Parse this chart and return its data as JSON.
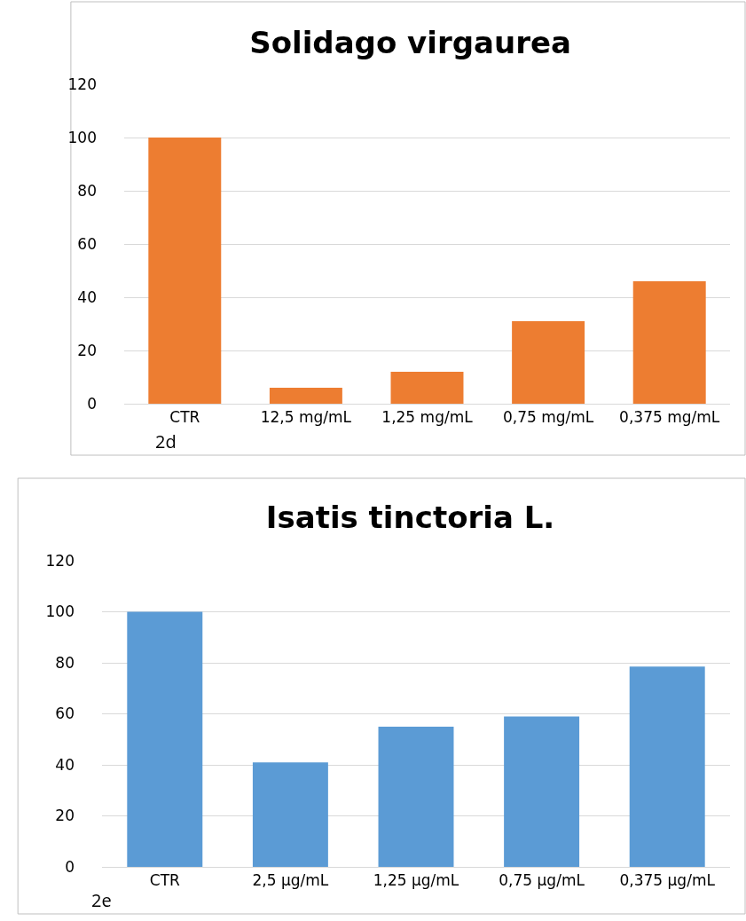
{
  "chart_data": [
    {
      "type": "bar",
      "title": "Solidago virgaurea",
      "categories": [
        "CTR",
        "12,5 mg/mL",
        "1,25 mg/mL",
        "0,75 mg/mL",
        "0,375 mg/mL"
      ],
      "values": [
        100,
        6,
        12,
        31,
        46
      ],
      "color": "#ed7d31",
      "ylim": [
        0,
        120
      ],
      "yticks": [
        0,
        20,
        40,
        60,
        80,
        100,
        120
      ],
      "grid": "y",
      "legend": false,
      "annotations": [
        "2d"
      ]
    },
    {
      "type": "bar",
      "title": "Isatis tinctoria L.",
      "categories": [
        "CTR",
        "2,5 µg/mL",
        "1,25 µg/mL",
        "0,75 µg/mL",
        "0,375 µg/mL"
      ],
      "values": [
        100,
        41,
        55,
        59,
        78.5
      ],
      "color": "#5b9bd5",
      "ylim": [
        0,
        120
      ],
      "yticks": [
        0,
        20,
        40,
        60,
        80,
        100,
        120
      ],
      "grid": "y",
      "legend": false,
      "annotations": [
        "2e"
      ]
    }
  ]
}
